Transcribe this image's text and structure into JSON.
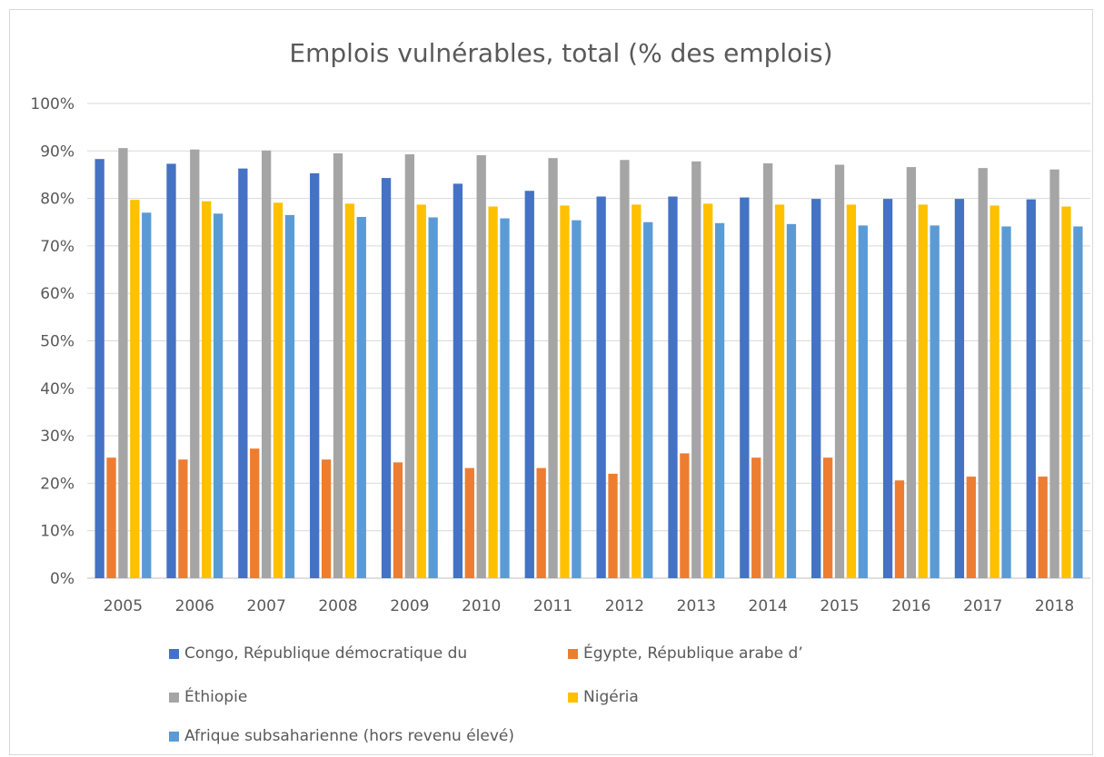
{
  "chart_data": {
    "type": "bar",
    "title": "Emplois vulnérables, total (% des emplois)",
    "xlabel": "",
    "ylabel": "",
    "ylim": [
      0,
      100
    ],
    "yticks": [
      "0%",
      "10%",
      "20%",
      "30%",
      "40%",
      "50%",
      "60%",
      "70%",
      "80%",
      "90%",
      "100%"
    ],
    "grid": true,
    "legend_position": "bottom",
    "categories": [
      "2005",
      "2006",
      "2007",
      "2008",
      "2009",
      "2010",
      "2011",
      "2012",
      "2013",
      "2014",
      "2015",
      "2016",
      "2017",
      "2018"
    ],
    "series": [
      {
        "name": "Congo, République démocratique du",
        "color": "#4472c4",
        "values": [
          88.3,
          87.3,
          86.3,
          85.3,
          84.3,
          83.1,
          81.6,
          80.4,
          80.4,
          80.2,
          79.9,
          79.9,
          79.9,
          79.8
        ]
      },
      {
        "name": "Égypte, République arabe d’",
        "color": "#ed7d31",
        "values": [
          25.4,
          25.0,
          27.3,
          25.0,
          24.4,
          23.2,
          23.2,
          22.0,
          26.3,
          25.4,
          25.4,
          20.6,
          21.4,
          21.4
        ]
      },
      {
        "name": "Éthiopie",
        "color": "#a5a5a5",
        "values": [
          90.6,
          90.3,
          90.1,
          89.5,
          89.3,
          89.1,
          88.5,
          88.1,
          87.8,
          87.4,
          87.1,
          86.6,
          86.4,
          86.1
        ]
      },
      {
        "name": "Nigéria",
        "color": "#ffc000",
        "values": [
          79.7,
          79.4,
          79.1,
          78.9,
          78.7,
          78.3,
          78.5,
          78.7,
          78.9,
          78.7,
          78.7,
          78.7,
          78.5,
          78.3
        ]
      },
      {
        "name": "Afrique subsaharienne (hors revenu élevé)",
        "color": "#5b9bd5",
        "values": [
          77.0,
          76.8,
          76.5,
          76.1,
          76.0,
          75.8,
          75.4,
          75.0,
          74.8,
          74.6,
          74.3,
          74.3,
          74.1,
          74.1
        ]
      }
    ]
  }
}
